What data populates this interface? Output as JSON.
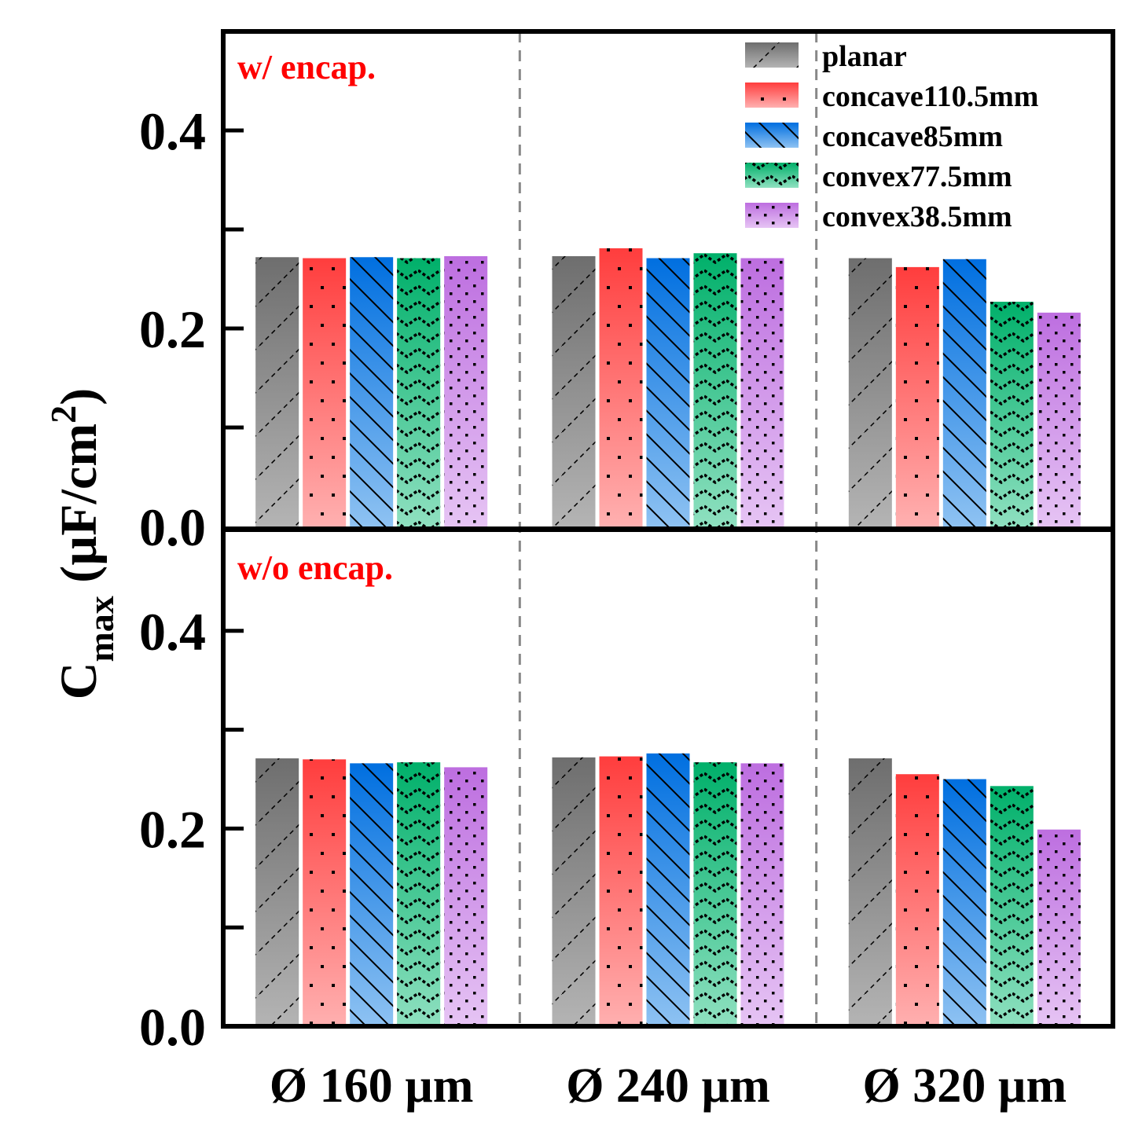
{
  "chart_data": {
    "type": "bar",
    "ylabel": {
      "main": "C",
      "sub": "max",
      "unit": " (µF/cm",
      "sup": "2",
      "close": ")"
    },
    "categories": [
      "Ø 160 µm",
      "Ø 240 µm",
      "Ø 320 µm"
    ],
    "ylim": [
      0,
      0.5
    ],
    "ytick_labels": [
      "0.0",
      "0.2",
      "0.4"
    ],
    "series_names": [
      "planar",
      "concave110.5mm",
      "concave85mm",
      "convex77.5mm",
      "convex38.5mm"
    ],
    "series_colors": {
      "planar": [
        "#6e6e6e",
        "#b4b4b4"
      ],
      "concave110.5mm": [
        "#ff3d3d",
        "#ffb0b0"
      ],
      "concave85mm": [
        "#006fe0",
        "#8ec2f2"
      ],
      "convex77.5mm": [
        "#00b06a",
        "#8fe0c0"
      ],
      "convex38.5mm": [
        "#bd6ee0",
        "#e6c4f4"
      ]
    },
    "panels": [
      {
        "label": "w/ encap.",
        "series": [
          {
            "name": "planar",
            "values": [
              0.272,
              0.273,
              0.271
            ]
          },
          {
            "name": "concave110.5mm",
            "values": [
              0.271,
              0.281,
              0.262
            ]
          },
          {
            "name": "concave85mm",
            "values": [
              0.272,
              0.271,
              0.27
            ]
          },
          {
            "name": "convex77.5mm",
            "values": [
              0.271,
              0.276,
              0.227
            ]
          },
          {
            "name": "convex38.5mm",
            "values": [
              0.273,
              0.271,
              0.216
            ]
          }
        ]
      },
      {
        "label": "w/o encap.",
        "series": [
          {
            "name": "planar",
            "values": [
              0.271,
              0.272,
              0.271
            ]
          },
          {
            "name": "concave110.5mm",
            "values": [
              0.27,
              0.273,
              0.255
            ]
          },
          {
            "name": "concave85mm",
            "values": [
              0.266,
              0.276,
              0.25
            ]
          },
          {
            "name": "convex77.5mm",
            "values": [
              0.267,
              0.267,
              0.243
            ]
          },
          {
            "name": "convex38.5mm",
            "values": [
              0.262,
              0.266,
              0.199
            ]
          }
        ]
      }
    ]
  }
}
